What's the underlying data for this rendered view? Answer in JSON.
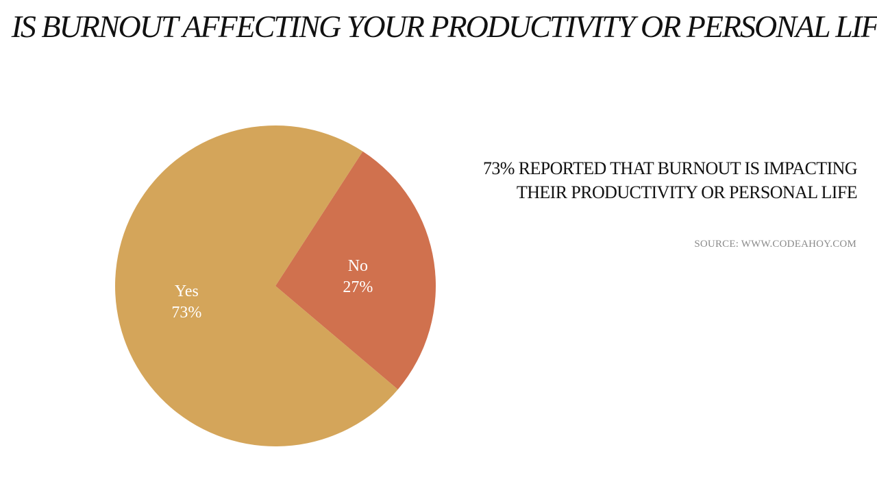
{
  "chart_data": {
    "type": "pie",
    "title": "IS BURNOUT AFFECTING YOUR PRODUCTIVITY OR PERSONAL LIFE?",
    "slices": [
      {
        "name": "Yes",
        "value": 73,
        "label": "73%",
        "color": "#D4A55A"
      },
      {
        "name": "No",
        "value": 27,
        "label": "27%",
        "color": "#D0714E"
      }
    ]
  },
  "callout": {
    "text": "73% REPORTED THAT BURNOUT IS IMPACTING THEIR PRODUCTIVITY OR PERSONAL LIFE"
  },
  "source": {
    "text": "SOURCE: WWW.CODEAHOY.COM"
  }
}
